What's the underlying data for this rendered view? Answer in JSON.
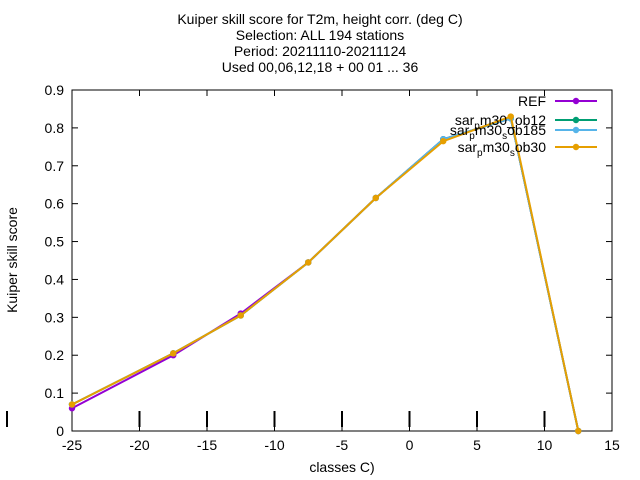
{
  "chart_data": {
    "type": "line",
    "title_lines": [
      "Kuiper skill score  for T2m, height corr. (deg C)",
      "Selection: ALL     194 stations",
      "Period: 20211110-20211124",
      "Used 00,06,12,18 + 00 01 ... 36"
    ],
    "xlabel": "classes C)",
    "ylabel": "Kuiper skill score",
    "xlim": [
      -25,
      15
    ],
    "ylim": [
      0,
      0.9
    ],
    "xticks": [
      -25,
      -20,
      -15,
      -10,
      -5,
      0,
      5,
      10,
      15
    ],
    "yticks": [
      0,
      0.1,
      0.2,
      0.3,
      0.4,
      0.5,
      0.6,
      0.7,
      0.8,
      0.9
    ],
    "grid": false,
    "legend_position": "top-right",
    "series": [
      {
        "name": "REF",
        "legend": {
          "base": "REF",
          "sub": "",
          "tail": ""
        },
        "color": "#9400d3",
        "x": [
          -25,
          -17.5,
          -12.5,
          -7.5,
          -2.5,
          2.5,
          7.5,
          12.5
        ],
        "y": [
          0.06,
          0.2,
          0.31,
          0.445,
          0.615,
          0.77,
          0.825,
          0.0
        ]
      },
      {
        "name": "sar_pm30_ob12",
        "legend": {
          "base": "sar",
          "sub": "p",
          "tail": "m30_ob12"
        },
        "color": "#009e73",
        "x": [
          -25,
          -17.5,
          -12.5,
          -7.5,
          -2.5,
          2.5,
          7.5,
          12.5
        ],
        "y": [
          0.07,
          0.205,
          0.305,
          0.445,
          0.615,
          0.77,
          0.825,
          0.0
        ]
      },
      {
        "name": "sar_pm30_sob185",
        "legend": {
          "base": "sar",
          "sub": "p",
          "tail": "m30",
          "sub2": "s",
          "tail2": "ob185"
        },
        "color": "#56b4e9",
        "x": [
          -25,
          -17.5,
          -12.5,
          -7.5,
          -2.5,
          2.5,
          7.5,
          12.5
        ],
        "y": [
          0.07,
          0.205,
          0.305,
          0.445,
          0.615,
          0.77,
          0.825,
          0.0
        ]
      },
      {
        "name": "sar_pm30_sob30",
        "legend": {
          "base": "sar",
          "sub": "p",
          "tail": "m30",
          "sub2": "s",
          "tail2": "ob30"
        },
        "color": "#e69f00",
        "x": [
          -25,
          -17.5,
          -12.5,
          -7.5,
          -2.5,
          2.5,
          7.5,
          12.5
        ],
        "y": [
          0.07,
          0.205,
          0.305,
          0.445,
          0.615,
          0.765,
          0.83,
          0.0
        ]
      }
    ],
    "bottom_markers_x": [
      -25,
      -20,
      -15,
      -10,
      -5,
      0,
      5,
      10,
      15
    ]
  }
}
